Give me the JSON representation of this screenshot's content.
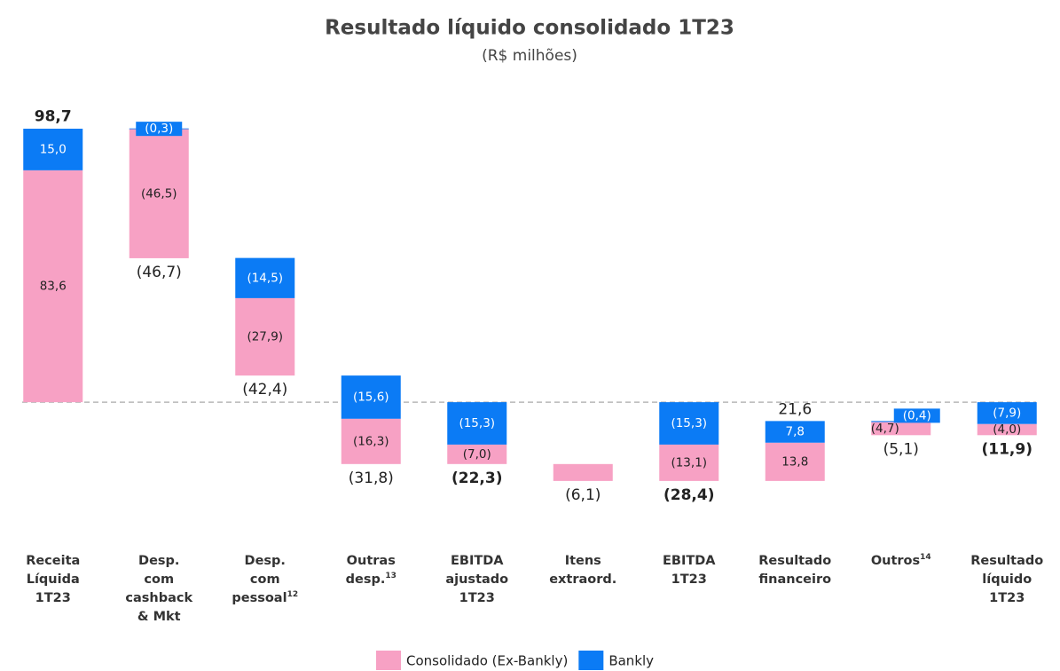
{
  "chart_data": {
    "type": "waterfall",
    "title": "Resultado líquido consolidado 1T23",
    "subtitle": "(R$ milhões)",
    "categories": [
      "Receita Líquida 1T23",
      "Desp. com cashback & Mkt",
      "Desp. com pessoal",
      "Outras desp.",
      "EBITDA ajustado 1T23",
      "Itens extraord.",
      "EBITDA 1T23",
      "Resultado financeiro",
      "Outros",
      "Resultado líquido 1T23"
    ],
    "category_notes": [
      null,
      null,
      "12",
      "13",
      null,
      null,
      null,
      null,
      "14",
      null
    ],
    "measure": [
      "absolute",
      "relative",
      "relative",
      "relative",
      "absolute",
      "relative",
      "absolute",
      "relative",
      "relative",
      "absolute"
    ],
    "series": [
      {
        "name": "Consolidado (Ex-Bankly)",
        "color": "#f7a1c4",
        "values": [
          83.6,
          -46.5,
          -27.9,
          -16.3,
          -7.0,
          -6.1,
          -13.1,
          13.8,
          -4.7,
          -4.0
        ],
        "value_labels": [
          "83,6",
          "(46,5)",
          "(27,9)",
          "(16,3)",
          "(7,0)",
          null,
          "(13,1)",
          "13,8",
          "(4,7)",
          "(4,0)"
        ]
      },
      {
        "name": "Bankly",
        "color": "#0b7bf5",
        "values": [
          15.0,
          -0.3,
          -14.5,
          -15.6,
          -15.3,
          null,
          -15.3,
          7.8,
          -0.4,
          -7.9
        ],
        "value_labels": [
          "15,0",
          "(0,3)",
          "(14,5)",
          "(15,6)",
          "(15,3)",
          null,
          "(15,3)",
          "7,8",
          "(0,4)",
          "(7,9)"
        ]
      }
    ],
    "totals": [
      98.7,
      -46.7,
      -42.4,
      -31.8,
      -22.3,
      -6.1,
      -28.4,
      21.6,
      -5.1,
      -11.9
    ],
    "total_labels": [
      "98,7",
      "(46,7)",
      "(42,4)",
      "(31,8)",
      "(22,3)",
      "(6,1)",
      "(28,4)",
      "21,6",
      "(5,1)",
      "(11,9)"
    ],
    "total_bold": [
      true,
      false,
      false,
      false,
      true,
      false,
      true,
      false,
      false,
      true
    ],
    "ylim": [
      -47,
      113
    ]
  }
}
